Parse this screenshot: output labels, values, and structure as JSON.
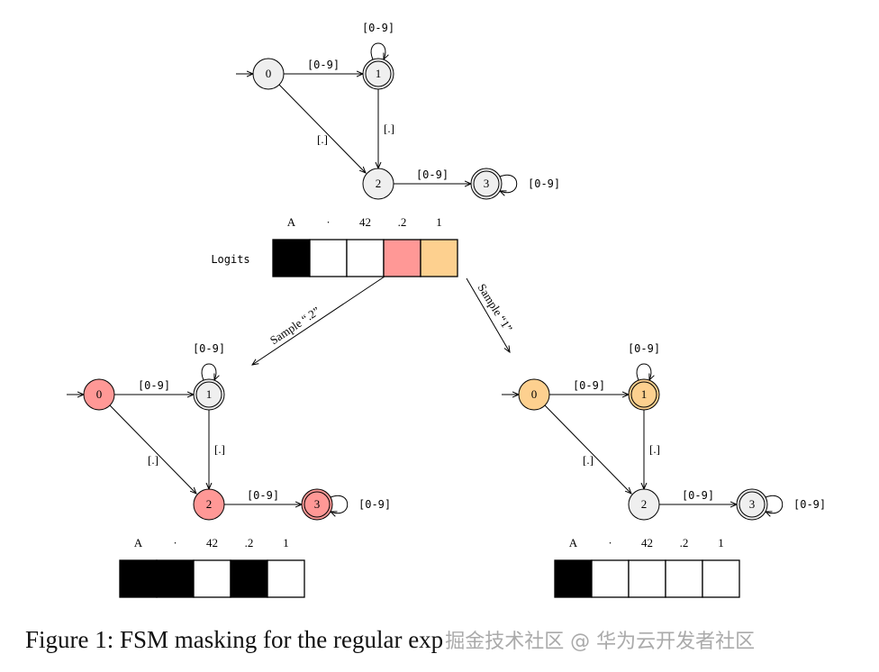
{
  "fsm": {
    "states": [
      "0",
      "1",
      "2",
      "3"
    ],
    "accepting": [
      "1",
      "3"
    ],
    "edges": [
      {
        "from": "0",
        "to": "1",
        "label": "[0-9]"
      },
      {
        "from": "1",
        "to": "1",
        "label": "[0-9]"
      },
      {
        "from": "0",
        "to": "2",
        "label": "[.]"
      },
      {
        "from": "1",
        "to": "2",
        "label": "[.]"
      },
      {
        "from": "2",
        "to": "3",
        "label": "[0-9]"
      },
      {
        "from": "3",
        "to": "3",
        "label": "[0-9]"
      }
    ]
  },
  "tokens": [
    "A",
    "·",
    "42",
    ".2",
    "1"
  ],
  "logits": {
    "label": "Logits",
    "cell_colors": [
      "#000000",
      "#ffffff",
      "#ffffff",
      "#ff9896",
      "#fdd08f"
    ]
  },
  "branches": [
    {
      "sample_label": "Sample “.2”",
      "state_colors": [
        "#ff9896",
        "#efefef",
        "#ff9896",
        "#ff9896"
      ],
      "mask_colors": [
        "#000000",
        "#000000",
        "#ffffff",
        "#000000",
        "#ffffff"
      ]
    },
    {
      "sample_label": "Sample “1”",
      "state_colors": [
        "#fdd08f",
        "#fdd08f",
        "#efefef",
        "#efefef"
      ],
      "mask_colors": [
        "#000000",
        "#ffffff",
        "#ffffff",
        "#ffffff",
        "#ffffff"
      ]
    }
  ],
  "top_state_color": "#efefef",
  "caption": "Figure 1: FSM masking for the regular exp",
  "watermark": "掘金技术社区 @ 华为云开发者社区"
}
